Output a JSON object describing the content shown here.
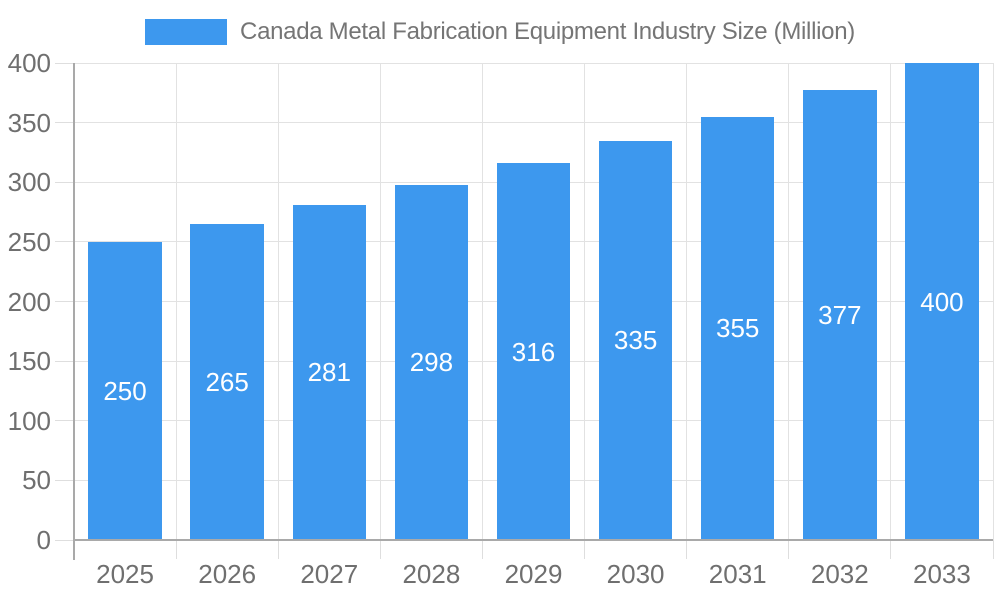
{
  "chart_data": {
    "type": "bar",
    "title": "Canada Metal Fabrication Equipment Industry Size (Million)",
    "categories": [
      "2025",
      "2026",
      "2027",
      "2028",
      "2029",
      "2030",
      "2031",
      "2032",
      "2033"
    ],
    "values": [
      250,
      265,
      281,
      298,
      316,
      335,
      355,
      377,
      400
    ],
    "xlabel": "",
    "ylabel": "",
    "ylim": [
      0,
      400
    ],
    "ytick_step": 50,
    "yticks": [
      0,
      50,
      100,
      150,
      200,
      250,
      300,
      350,
      400
    ],
    "grid": true,
    "legend_position": "top-center",
    "colors": {
      "bar": "#3d98ee",
      "axis_line": "#a9a9a9",
      "gridline": "#e2e2e2",
      "tick": "#dedede",
      "axis_label": "#6f6f6f",
      "title_text": "#757575",
      "value_label": "#ffffff",
      "background": "#ffffff"
    }
  }
}
